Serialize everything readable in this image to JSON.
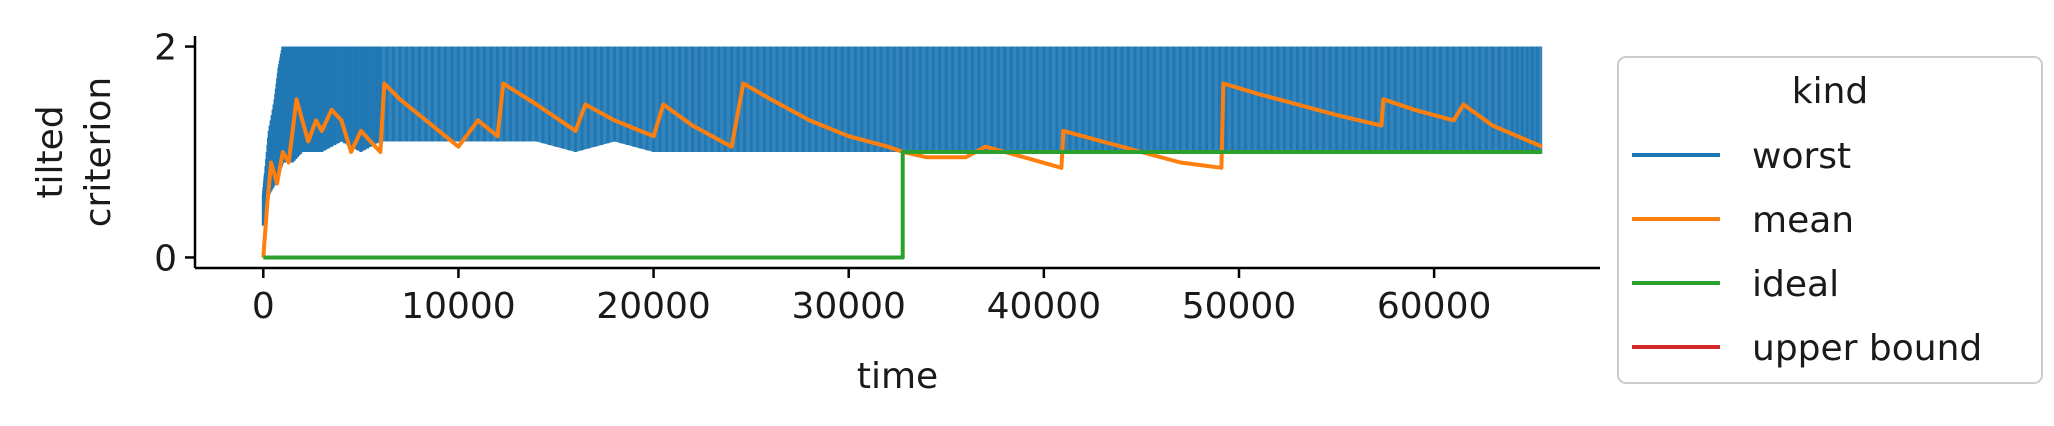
{
  "colors": {
    "worst": "#1f77b4",
    "mean": "#ff7f0e",
    "ideal": "#2ca02c",
    "upper_bound": "#d62728",
    "axis": "#000000",
    "legend_border": "#cccccc"
  },
  "chart_data": {
    "type": "line",
    "xlabel": "time",
    "ylabel": [
      "tilted",
      "criterion"
    ],
    "xlim": [
      -3500,
      68500
    ],
    "ylim": [
      -0.1,
      2.1
    ],
    "xticks": [
      0,
      10000,
      20000,
      30000,
      40000,
      50000,
      60000
    ],
    "yticks": [
      0,
      2
    ],
    "grid": false,
    "legend": {
      "title": "kind",
      "placement": "outside-right",
      "entries": [
        "worst",
        "mean",
        "ideal",
        "upper bound"
      ]
    },
    "series": [
      {
        "name": "worst",
        "note_shape": "band",
        "x": [
          0,
          100,
          300,
          600,
          800,
          1000,
          1500,
          2000,
          2500,
          3000,
          4000,
          5000,
          6000,
          8000,
          10000,
          12000,
          14000,
          16000,
          18000,
          20000,
          22000,
          24000,
          26000,
          28000,
          30000,
          32000,
          34000,
          36000,
          38000,
          40000,
          42000,
          44000,
          46000,
          48000,
          50000,
          52000,
          54000,
          56000,
          58000,
          60000,
          62000,
          64000,
          65536
        ],
        "high": [
          0.6,
          0.8,
          1.2,
          1.5,
          1.8,
          2.0,
          2.0,
          2.0,
          2.0,
          2.0,
          2.0,
          2.0,
          2.0,
          2.0,
          2.0,
          2.0,
          2.0,
          2.0,
          2.0,
          2.0,
          2.0,
          2.0,
          2.0,
          2.0,
          2.0,
          2.0,
          2.0,
          2.0,
          2.0,
          2.0,
          2.0,
          2.0,
          2.0,
          2.0,
          2.0,
          2.0,
          2.0,
          2.0,
          2.0,
          2.0,
          2.0,
          2.0,
          2.0
        ],
        "low": [
          0.3,
          0.5,
          0.6,
          0.7,
          0.8,
          0.9,
          0.9,
          1.0,
          1.0,
          1.0,
          1.1,
          1.0,
          1.1,
          1.1,
          1.1,
          1.1,
          1.1,
          1.0,
          1.1,
          1.0,
          1.0,
          1.0,
          1.0,
          1.0,
          1.0,
          1.0,
          1.0,
          1.0,
          1.0,
          1.0,
          1.0,
          1.0,
          1.0,
          1.0,
          1.0,
          1.0,
          1.0,
          1.0,
          1.0,
          1.0,
          1.0,
          1.0,
          1.0
        ]
      },
      {
        "name": "mean",
        "x": [
          0,
          200,
          400,
          700,
          1000,
          1300,
          1700,
          2000,
          2300,
          2700,
          3000,
          3500,
          4000,
          4500,
          5000,
          5500,
          6000,
          6200,
          7000,
          8000,
          9000,
          10000,
          11000,
          12000,
          12300,
          14000,
          16000,
          16500,
          18000,
          20000,
          20500,
          22000,
          24000,
          24600,
          26000,
          28000,
          30000,
          32000,
          32800,
          34000,
          36000,
          37000,
          39000,
          40900,
          41000,
          43000,
          45000,
          47000,
          49100,
          49200,
          51000,
          53000,
          55000,
          57300,
          57400,
          59000,
          61000,
          61500,
          63000,
          65536
        ],
        "y": [
          0.0,
          0.5,
          0.9,
          0.7,
          1.0,
          0.9,
          1.5,
          1.3,
          1.1,
          1.3,
          1.2,
          1.4,
          1.3,
          1.0,
          1.2,
          1.1,
          1.0,
          1.65,
          1.5,
          1.35,
          1.2,
          1.05,
          1.3,
          1.15,
          1.65,
          1.45,
          1.2,
          1.45,
          1.3,
          1.15,
          1.45,
          1.25,
          1.05,
          1.65,
          1.5,
          1.3,
          1.15,
          1.05,
          1.0,
          0.95,
          0.95,
          1.05,
          0.95,
          0.85,
          1.2,
          1.1,
          1.0,
          0.9,
          0.85,
          1.65,
          1.55,
          1.45,
          1.35,
          1.25,
          1.5,
          1.4,
          1.3,
          1.45,
          1.25,
          1.05
        ]
      },
      {
        "name": "ideal",
        "x": [
          0,
          32768,
          32768,
          65536
        ],
        "y": [
          0,
          0,
          1,
          1
        ]
      },
      {
        "name": "upper bound",
        "x": [],
        "y": []
      }
    ]
  }
}
